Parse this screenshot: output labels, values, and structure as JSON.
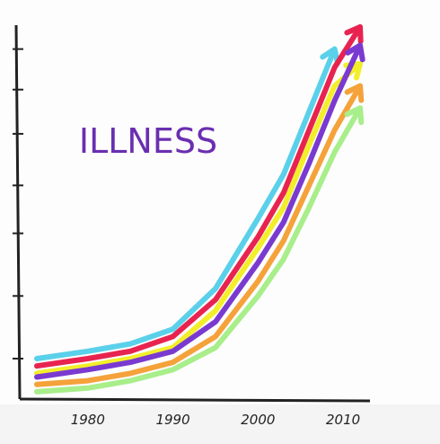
{
  "chart_data": {
    "type": "line",
    "title": "ILLNESS",
    "x": [
      1974,
      1980,
      1985,
      1990,
      1995,
      2000,
      2003,
      2006,
      2009,
      2012
    ],
    "xlim": [
      1972,
      2014
    ],
    "xticks": [
      1980,
      1990,
      2000,
      2010
    ],
    "ylim": [
      0,
      100
    ],
    "yticks": [
      10,
      27,
      44,
      57,
      71,
      83,
      94
    ],
    "title_color": "#6a2fb0",
    "series": [
      {
        "color": "#5ad0ea",
        "values": [
          10,
          12,
          14,
          18,
          29,
          48,
          60,
          77,
          94,
          null
        ]
      },
      {
        "color": "#e8234f",
        "values": [
          8,
          10,
          12,
          16,
          26,
          43,
          55,
          72,
          89,
          100
        ]
      },
      {
        "color": "#f3ee2a",
        "values": [
          6,
          8,
          10,
          13,
          23,
          40,
          51,
          68,
          84,
          90
        ]
      },
      {
        "color": "#7a3ad0",
        "values": [
          5,
          7,
          9,
          12,
          20,
          36,
          47,
          63,
          80,
          95
        ]
      },
      {
        "color": "#f5a23a",
        "values": [
          3,
          4,
          6,
          9,
          16,
          31,
          42,
          57,
          72,
          84
        ]
      },
      {
        "color": "#a8ee8a",
        "values": [
          1,
          2,
          4,
          7,
          13,
          27,
          37,
          51,
          66,
          78
        ]
      }
    ]
  }
}
